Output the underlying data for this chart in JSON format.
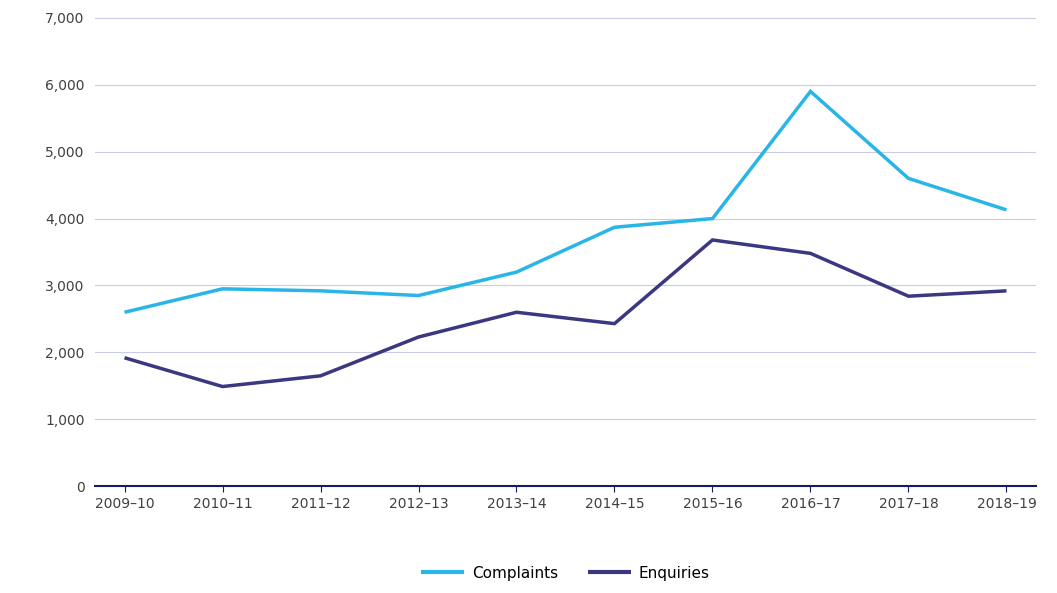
{
  "categories": [
    "2009–10",
    "2010–11",
    "2011–12",
    "2012–13",
    "2013–14",
    "2014–15",
    "2015–16",
    "2016–17",
    "2017–18",
    "2018–19"
  ],
  "complaints": [
    2600,
    2950,
    2920,
    2850,
    3200,
    3870,
    4000,
    5900,
    4600,
    4130
  ],
  "enquiries": [
    1920,
    1490,
    1650,
    2230,
    2600,
    2430,
    3680,
    3480,
    2840,
    2920
  ],
  "complaints_color": "#29b5e8",
  "enquiries_color": "#3b3780",
  "line_width": 2.5,
  "ylim": [
    0,
    7000
  ],
  "yticks": [
    0,
    1000,
    2000,
    3000,
    4000,
    5000,
    6000,
    7000
  ],
  "background_color": "#ffffff",
  "grid_color": "#c8cce8",
  "legend_complaints": "Complaints",
  "legend_enquiries": "Enquiries",
  "tick_fontsize": 10,
  "tick_color": "#404040",
  "spine_color": "#1a1a5e",
  "legend_fontsize": 11
}
